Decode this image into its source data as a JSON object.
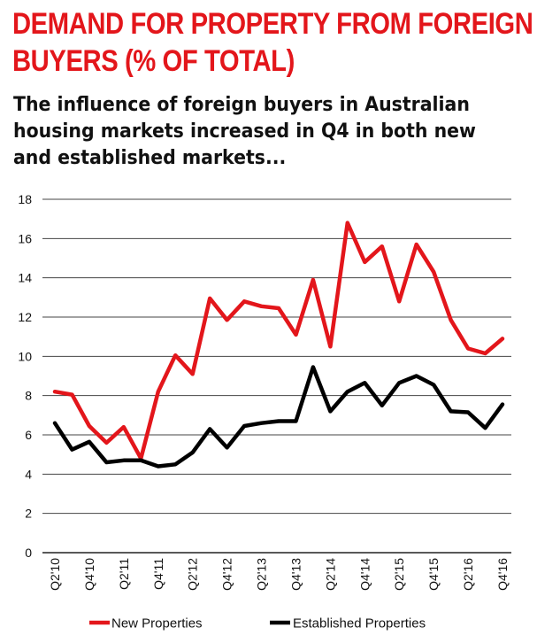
{
  "title_lines": [
    "DEMAND FOR PROPERTY FROM FOREIGN",
    "BUYERS (% OF TOTAL)"
  ],
  "subtitle_lines": [
    "The influence of foreign buyers in Australian",
    "housing markets increased in Q4 in both new",
    "and established markets..."
  ],
  "chart_data": {
    "type": "line",
    "title": "DEMAND FOR PROPERTY FROM FOREIGN BUYERS (% OF TOTAL)",
    "subtitle": "The influence of foreign buyers in Australian housing markets increased in Q4 in both new and established markets...",
    "xlabel": "",
    "ylabel": "",
    "ylim": [
      0,
      18
    ],
    "yticks": [
      0,
      2,
      4,
      6,
      8,
      10,
      12,
      14,
      16,
      18
    ],
    "grid": "horizontal",
    "legend_position": "bottom",
    "x": [
      "Q2'10",
      "Q3'10",
      "Q4'10",
      "Q1'11",
      "Q2'11",
      "Q3'11",
      "Q4'11",
      "Q1'12",
      "Q2'12",
      "Q3'12",
      "Q4'12",
      "Q1'13",
      "Q2'13",
      "Q3'13",
      "Q4'13",
      "Q1'14",
      "Q2'14",
      "Q3'14",
      "Q4'14",
      "Q1'15",
      "Q2'15",
      "Q3'15",
      "Q4'15",
      "Q1'16",
      "Q2'16",
      "Q3'16",
      "Q4'16"
    ],
    "x_tick_labels": [
      "Q2'10",
      "Q4'10",
      "Q2'11",
      "Q4'11",
      "Q2'12",
      "Q4'12",
      "Q2'13",
      "Q4'13",
      "Q2'14",
      "Q4'14",
      "Q2'15",
      "Q4'15",
      "Q2'16",
      "Q4'16"
    ],
    "series": [
      {
        "name": "New Properties",
        "color": "#e3161b",
        "values": [
          8.2,
          8.05,
          6.45,
          5.6,
          6.4,
          4.8,
          8.2,
          10.05,
          9.1,
          12.95,
          11.85,
          12.8,
          12.55,
          12.45,
          11.1,
          13.9,
          10.5,
          16.8,
          14.8,
          15.6,
          12.8,
          15.7,
          14.3,
          11.85,
          10.4,
          10.15,
          10.9
        ]
      },
      {
        "name": "Established Properties",
        "color": "#000000",
        "values": [
          6.6,
          5.25,
          5.65,
          4.6,
          4.7,
          4.7,
          4.4,
          4.5,
          5.1,
          6.3,
          5.35,
          6.45,
          6.6,
          6.7,
          6.7,
          9.45,
          7.2,
          8.2,
          8.65,
          7.5,
          8.65,
          9.0,
          8.55,
          7.2,
          7.15,
          6.35,
          7.55
        ]
      }
    ]
  }
}
